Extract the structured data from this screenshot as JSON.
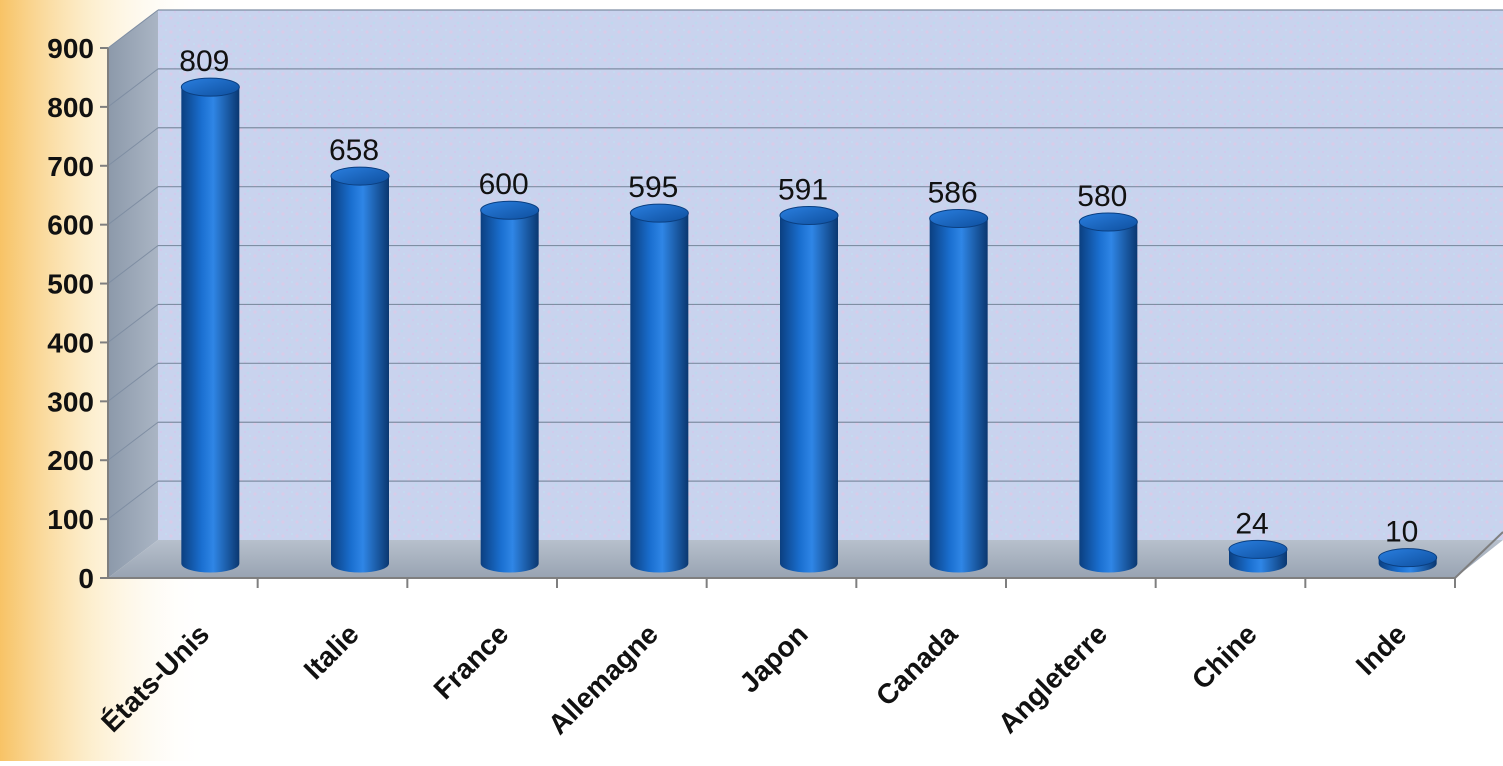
{
  "chart_data": {
    "type": "bar",
    "title": "",
    "xlabel": "",
    "ylabel": "",
    "categories": [
      "États-Unis",
      "Italie",
      "France",
      "Allemagne",
      "Japon",
      "Canada",
      "Angleterre",
      "Chine",
      "Inde"
    ],
    "values": [
      809,
      658,
      600,
      595,
      591,
      586,
      580,
      24,
      10
    ],
    "data_labels": [
      "809",
      "658",
      "600",
      "595",
      "591",
      "586",
      "580",
      "24",
      "10"
    ],
    "y_ticks": [
      "0",
      "100",
      "200",
      "300",
      "400",
      "500",
      "600",
      "700",
      "800",
      "900"
    ],
    "ylim": [
      0,
      900
    ],
    "grid": true,
    "legend": "none",
    "style": "3d-cylinder",
    "colors": {
      "bar": "#1565c0",
      "bar_dark": "#0a3d7a",
      "bar_light": "#3f8fe0",
      "wall": "#c8d4ee",
      "side_wall": "#9aa7b8",
      "floor": "#a9b4c2",
      "gridline": "#7f8ea3",
      "page_glow": "#f6c05a"
    }
  }
}
